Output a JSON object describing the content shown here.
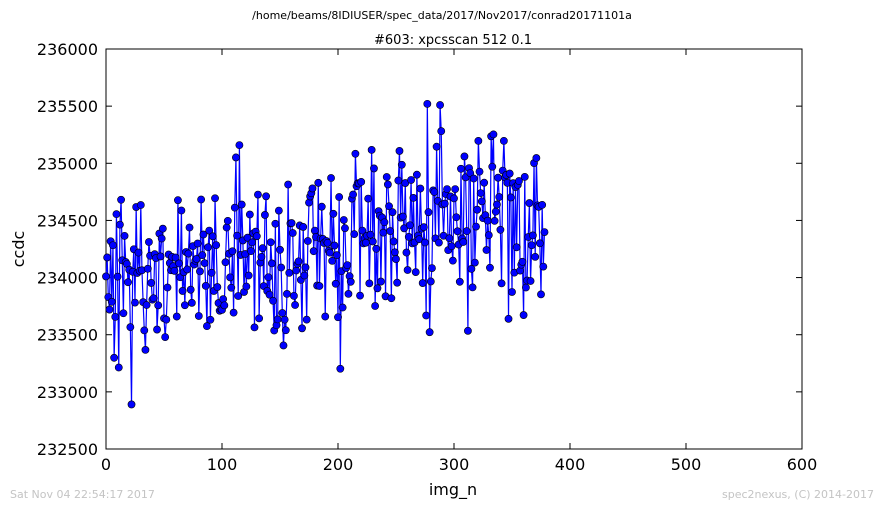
{
  "header": {
    "path": "/home/beams/8IDIUSER/spec_data/2017/Nov2017/conrad20171101a"
  },
  "footer": {
    "timestamp": "Sat Nov 04 22:54:17 2017",
    "credit": "spec2nexus, (C) 2014-2017"
  },
  "chart_data": {
    "type": "line",
    "title": "#603: xpcsscan 512 0.1",
    "xlabel": "img_n",
    "ylabel": "ccdc",
    "xlim": [
      0,
      600
    ],
    "ylim": [
      232500,
      236000
    ],
    "x_ticks": [
      0,
      100,
      200,
      300,
      400,
      500,
      600
    ],
    "y_ticks": [
      232500,
      233000,
      233500,
      234000,
      234500,
      235000,
      235500,
      236000
    ],
    "grid": false,
    "legend": "none",
    "marker": "circle",
    "color": "#0000ff",
    "series": [
      {
        "x_start": 0,
        "x_step": 1,
        "values": [
          234010,
          234176,
          233829,
          233720,
          234318,
          233788,
          234283,
          233298,
          233656,
          234555,
          234008,
          233213,
          234463,
          234681,
          234151,
          233688,
          234365,
          234136,
          234119,
          233959,
          234069,
          233566,
          232890,
          234051,
          234248,
          233781,
          234617,
          234040,
          234219,
          234059,
          234635,
          234064,
          233785,
          233538,
          233367,
          233760,
          234077,
          234311,
          234191,
          233953,
          233807,
          233819,
          234205,
          234170,
          233545,
          233757,
          234385,
          234185,
          234342,
          234428,
          233643,
          233479,
          233632,
          233913,
          234202,
          234127,
          234064,
          234181,
          234100,
          234059,
          234175,
          233659,
          234677,
          234124,
          234003,
          234587,
          233883,
          234047,
          233758,
          234224,
          234071,
          234210,
          234438,
          233894,
          233779,
          234275,
          234114,
          234147,
          234163,
          234298,
          233664,
          234054,
          234683,
          234196,
          234377,
          234126,
          233927,
          233575,
          234265,
          234411,
          233631,
          234042,
          234361,
          233883,
          234694,
          234284,
          233917,
          233777,
          233710,
          233724,
          233717,
          233811,
          233757,
          234134,
          234438,
          234496,
          234209,
          234002,
          233911,
          234230,
          233693,
          234612,
          235051,
          234367,
          233839,
          235159,
          234198,
          234639,
          234325,
          233874,
          234206,
          233922,
          234349,
          234018,
          234552,
          234232,
          234308,
          234387,
          233564,
          234402,
          234362,
          234726,
          233643,
          234131,
          234181,
          234257,
          233925,
          234548,
          234711,
          233883,
          234003,
          233850,
          234309,
          234124,
          233797,
          233537,
          234471,
          233583,
          233634,
          234586,
          234243,
          234088,
          233690,
          233406,
          233632,
          233539,
          233857,
          234814,
          234041,
          234474,
          234477,
          234390,
          233840,
          233760,
          234062,
          234119,
          234142,
          234456,
          233980,
          233556,
          234443,
          234018,
          234089,
          233632,
          234320,
          234656,
          234710,
          234738,
          234780,
          234231,
          234411,
          234355,
          233930,
          234829,
          233926,
          234342,
          234620,
          234338,
          234303,
          233659,
          234320,
          234304,
          234234,
          234218,
          234871,
          234146,
          234558,
          234280,
          233946,
          234196,
          233653,
          234705,
          233202,
          234056,
          233738,
          234504,
          234432,
          234084,
          234109,
          233857,
          234012,
          233963,
          234691,
          234727,
          234380,
          235083,
          234799,
          234825,
          234824,
          233842,
          234837,
          234411,
          234299,
          234345,
          234305,
          234367,
          234691,
          233949,
          234375,
          235117,
          234316,
          234955,
          233751,
          234252,
          233906,
          234581,
          234542,
          233965,
          234526,
          234393,
          234484,
          233836,
          234880,
          234815,
          234624,
          234407,
          233819,
          234572,
          234316,
          234221,
          234162,
          233955,
          234849,
          235108,
          234525,
          234987,
          234534,
          234431,
          234827,
          234219,
          234066,
          234356,
          234458,
          234854,
          234299,
          234697,
          234308,
          234048,
          234900,
          234368,
          234336,
          234779,
          234428,
          233952,
          234441,
          234307,
          233668,
          235520,
          234572,
          233522,
          233966,
          234083,
          234763,
          234749,
          234343,
          235145,
          234671,
          234306,
          235510,
          235281,
          234640,
          234366,
          234647,
          234730,
          234774,
          234240,
          234344,
          234710,
          234274,
          234148,
          234693,
          234774,
          234528,
          234405,
          234289,
          233963,
          234952,
          234343,
          234311,
          235060,
          234877,
          234406,
          233534,
          234958,
          234914,
          234076,
          233914,
          234867,
          234131,
          234446,
          234594,
          235196,
          234927,
          234739,
          234667,
          234520,
          234830,
          234546,
          234241,
          234498,
          234371,
          234086,
          235236,
          234970,
          235253,
          234496,
          234577,
          234639,
          234874,
          234705,
          234418,
          233949,
          234936,
          235196,
          234875,
          234898,
          234829,
          233639,
          234910,
          234701,
          233874,
          234826,
          234043,
          234792,
          234265,
          234811,
          234845,
          234061,
          234113,
          234138,
          233672,
          234881,
          233913,
          233974,
          234355,
          234652,
          233970,
          234283,
          234369,
          235002,
          234181,
          235046,
          234632,
          234619,
          234300,
          233853,
          234636,
          234096,
          234398
        ]
      }
    ]
  }
}
